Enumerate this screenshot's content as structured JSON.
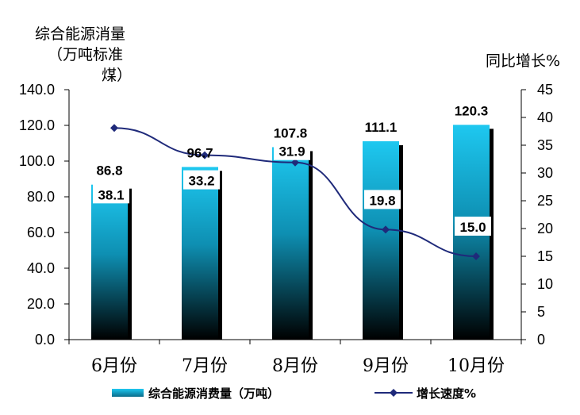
{
  "chart_data": {
    "type": "bar+line",
    "categories": [
      "6月份",
      "7月份",
      "8月份",
      "9月份",
      "10月份"
    ],
    "series": [
      {
        "name": "综合能源消费量（万吨）",
        "type": "bar",
        "axis": "left",
        "values": [
          86.8,
          96.7,
          107.8,
          111.1,
          120.3
        ]
      },
      {
        "name": "增长速度%",
        "type": "line",
        "axis": "right",
        "values": [
          38.1,
          33.2,
          31.9,
          19.8,
          15.0
        ]
      }
    ],
    "bar_labels": [
      "86.8",
      "96.7",
      "107.8",
      "111.1",
      "120.3"
    ],
    "line_labels": [
      "38.1",
      "33.2",
      "31.9",
      "19.8",
      "15.0"
    ],
    "y_left": {
      "title_lines": [
        "综合能源消量",
        "（万吨标准",
        "煤）"
      ],
      "ylim": [
        0,
        140
      ],
      "ticks": [
        "0.0",
        "20.0",
        "40.0",
        "60.0",
        "80.0",
        "100.0",
        "120.0",
        "140.0"
      ]
    },
    "y_right": {
      "title": "同比增长%",
      "ylim": [
        0,
        45
      ],
      "ticks": [
        "0",
        "5",
        "10",
        "15",
        "20",
        "25",
        "30",
        "35",
        "40",
        "45"
      ]
    },
    "grid": false,
    "legend_position": "bottom",
    "colors": {
      "bar_top": "#1EC8F0",
      "bar_bottom": "#000000",
      "bar_shadow": "#000000",
      "line": "#1F2A7A"
    }
  }
}
